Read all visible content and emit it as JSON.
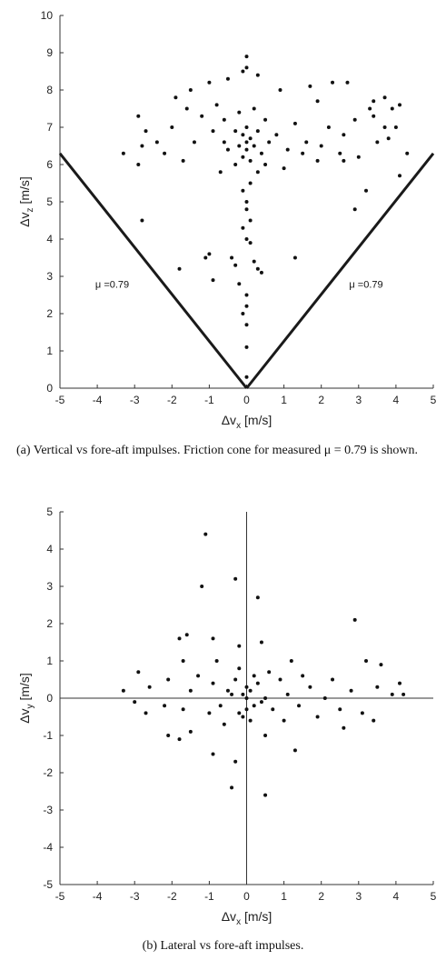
{
  "chart_data": [
    {
      "type": "scatter",
      "xlabel": "Δv_x [m/s]",
      "ylabel": "Δv_z [m/s]",
      "xlim": [
        -5,
        5
      ],
      "ylim": [
        0,
        10
      ],
      "xticks": [
        -5,
        -4,
        -3,
        -2,
        -1,
        0,
        1,
        2,
        3,
        4,
        5
      ],
      "yticks": [
        0,
        1,
        2,
        3,
        4,
        5,
        6,
        7,
        8,
        9,
        10
      ],
      "grid": false,
      "annotations": [
        "μ =0.79",
        "μ =0.79"
      ],
      "cone_slope": 0.79,
      "caption": "(a) Vertical vs fore-aft impulses. Friction cone for measured μ = 0.79 is shown.",
      "points": [
        [
          -3.3,
          6.3
        ],
        [
          -2.9,
          6.0
        ],
        [
          -2.8,
          4.5
        ],
        [
          -1.8,
          3.2
        ],
        [
          -1.1,
          3.5
        ],
        [
          -1.0,
          3.6
        ],
        [
          -0.9,
          2.9
        ],
        [
          -0.4,
          3.5
        ],
        [
          -0.3,
          3.3
        ],
        [
          -0.2,
          2.8
        ],
        [
          0.3,
          3.2
        ],
        [
          0.2,
          3.4
        ],
        [
          0.1,
          3.9
        ],
        [
          0.0,
          4.0
        ],
        [
          -0.1,
          4.3
        ],
        [
          0.1,
          4.5
        ],
        [
          0.0,
          2.5
        ],
        [
          0.0,
          2.2
        ],
        [
          -0.1,
          2.0
        ],
        [
          0.0,
          1.7
        ],
        [
          0.0,
          1.1
        ],
        [
          0.0,
          0.3
        ],
        [
          0.4,
          3.1
        ],
        [
          1.3,
          3.5
        ],
        [
          0.0,
          5.0
        ],
        [
          0.1,
          5.5
        ],
        [
          -0.1,
          5.3
        ],
        [
          0.0,
          4.8
        ],
        [
          -0.7,
          5.8
        ],
        [
          0.3,
          5.8
        ],
        [
          0.5,
          6.0
        ],
        [
          1.0,
          5.9
        ],
        [
          1.9,
          6.1
        ],
        [
          2.6,
          6.1
        ],
        [
          3.2,
          5.3
        ],
        [
          2.9,
          4.8
        ],
        [
          1.5,
          6.3
        ],
        [
          2.0,
          6.5
        ],
        [
          2.5,
          6.3
        ],
        [
          3.0,
          6.2
        ],
        [
          3.5,
          6.6
        ],
        [
          3.8,
          6.7
        ],
        [
          4.0,
          7.0
        ],
        [
          4.3,
          6.3
        ],
        [
          4.1,
          5.7
        ],
        [
          3.4,
          7.3
        ],
        [
          3.7,
          7.0
        ],
        [
          3.3,
          7.5
        ],
        [
          3.9,
          7.5
        ],
        [
          2.3,
          8.2
        ],
        [
          2.7,
          8.2
        ],
        [
          3.4,
          7.7
        ],
        [
          3.7,
          7.8
        ],
        [
          4.1,
          7.6
        ],
        [
          1.7,
          8.1
        ],
        [
          0.9,
          8.0
        ],
        [
          0.3,
          8.4
        ],
        [
          0.0,
          8.9
        ],
        [
          0.0,
          8.6
        ],
        [
          -0.1,
          8.5
        ],
        [
          -0.5,
          8.3
        ],
        [
          -1.0,
          8.2
        ],
        [
          -1.5,
          8.0
        ],
        [
          -1.9,
          7.8
        ],
        [
          -2.0,
          7.0
        ],
        [
          -2.4,
          6.6
        ],
        [
          -2.7,
          6.9
        ],
        [
          -2.9,
          7.3
        ],
        [
          -2.8,
          6.5
        ],
        [
          -2.2,
          6.3
        ],
        [
          -1.7,
          6.1
        ],
        [
          -1.4,
          6.6
        ],
        [
          -1.2,
          7.3
        ],
        [
          -0.8,
          7.6
        ],
        [
          -0.6,
          7.2
        ],
        [
          -0.5,
          6.4
        ],
        [
          -0.3,
          6.9
        ],
        [
          -0.2,
          6.5
        ],
        [
          -0.1,
          6.8
        ],
        [
          0.0,
          6.6
        ],
        [
          0.1,
          6.7
        ],
        [
          0.2,
          6.5
        ],
        [
          0.3,
          6.9
        ],
        [
          0.5,
          7.2
        ],
        [
          0.8,
          6.8
        ],
        [
          1.1,
          6.4
        ],
        [
          1.3,
          7.1
        ],
        [
          1.6,
          6.6
        ],
        [
          2.2,
          7.0
        ],
        [
          2.6,
          6.8
        ],
        [
          0.0,
          7.0
        ],
        [
          0.0,
          6.4
        ],
        [
          -0.1,
          6.2
        ],
        [
          0.1,
          6.1
        ],
        [
          -0.2,
          7.4
        ],
        [
          0.2,
          7.5
        ],
        [
          -0.3,
          6.0
        ],
        [
          0.4,
          6.3
        ],
        [
          0.6,
          6.6
        ],
        [
          -0.6,
          6.6
        ],
        [
          -0.9,
          6.9
        ],
        [
          -1.6,
          7.5
        ],
        [
          1.9,
          7.7
        ],
        [
          2.9,
          7.2
        ]
      ]
    },
    {
      "type": "scatter",
      "xlabel": "Δv_x [m/s]",
      "ylabel": "Δv_y [m/s]",
      "xlim": [
        -5,
        5
      ],
      "ylim": [
        -5,
        5
      ],
      "xticks": [
        -5,
        -4,
        -3,
        -2,
        -1,
        0,
        1,
        2,
        3,
        4,
        5
      ],
      "yticks": [
        -5,
        -4,
        -3,
        -2,
        -1,
        0,
        1,
        2,
        3,
        4,
        5
      ],
      "grid": false,
      "caption": "(b) Lateral vs fore-aft impulses.",
      "points": [
        [
          -1.1,
          4.4
        ],
        [
          -1.2,
          3.0
        ],
        [
          -0.3,
          3.2
        ],
        [
          0.3,
          2.7
        ],
        [
          2.9,
          2.1
        ],
        [
          -1.6,
          1.7
        ],
        [
          -1.8,
          1.6
        ],
        [
          -0.9,
          1.6
        ],
        [
          0.4,
          1.5
        ],
        [
          -0.2,
          1.4
        ],
        [
          -1.7,
          1.0
        ],
        [
          -0.8,
          1.0
        ],
        [
          1.2,
          1.0
        ],
        [
          3.2,
          1.0
        ],
        [
          3.6,
          0.9
        ],
        [
          -2.9,
          0.7
        ],
        [
          -3.3,
          0.2
        ],
        [
          -3.0,
          -0.1
        ],
        [
          -2.7,
          -0.4
        ],
        [
          -2.2,
          -0.2
        ],
        [
          -2.1,
          0.5
        ],
        [
          -1.7,
          -0.3
        ],
        [
          -1.5,
          0.2
        ],
        [
          -1.3,
          0.6
        ],
        [
          -0.9,
          0.4
        ],
        [
          -0.7,
          -0.2
        ],
        [
          -0.5,
          0.2
        ],
        [
          -0.3,
          0.5
        ],
        [
          -0.2,
          -0.4
        ],
        [
          -0.1,
          0.1
        ],
        [
          0.0,
          0.0
        ],
        [
          0.1,
          0.2
        ],
        [
          0.2,
          -0.2
        ],
        [
          0.3,
          0.4
        ],
        [
          0.5,
          0.0
        ],
        [
          0.7,
          -0.3
        ],
        [
          0.9,
          0.5
        ],
        [
          1.1,
          0.1
        ],
        [
          1.4,
          -0.2
        ],
        [
          1.7,
          0.3
        ],
        [
          2.1,
          0.0
        ],
        [
          2.5,
          -0.3
        ],
        [
          2.8,
          0.2
        ],
        [
          3.1,
          -0.4
        ],
        [
          3.5,
          0.3
        ],
        [
          3.9,
          0.1
        ],
        [
          4.1,
          0.4
        ],
        [
          4.2,
          0.1
        ],
        [
          3.4,
          -0.6
        ],
        [
          2.6,
          -0.8
        ],
        [
          1.3,
          -1.4
        ],
        [
          0.5,
          -1.0
        ],
        [
          -0.3,
          -1.7
        ],
        [
          -0.4,
          -2.4
        ],
        [
          0.5,
          -2.6
        ],
        [
          -0.9,
          -1.5
        ],
        [
          -1.8,
          -1.1
        ],
        [
          -2.1,
          -1.0
        ],
        [
          -1.5,
          -0.9
        ],
        [
          -0.6,
          -0.7
        ],
        [
          -0.1,
          -0.5
        ],
        [
          0.1,
          -0.6
        ],
        [
          0.2,
          0.6
        ],
        [
          -0.2,
          0.8
        ],
        [
          0.6,
          0.7
        ],
        [
          1.5,
          0.6
        ],
        [
          2.3,
          0.5
        ],
        [
          -2.6,
          0.3
        ],
        [
          -1.0,
          -0.4
        ],
        [
          1.0,
          -0.6
        ],
        [
          1.9,
          -0.5
        ],
        [
          0.0,
          -0.3
        ],
        [
          0.0,
          0.3
        ],
        [
          -0.4,
          0.1
        ],
        [
          0.4,
          -0.1
        ]
      ]
    }
  ]
}
